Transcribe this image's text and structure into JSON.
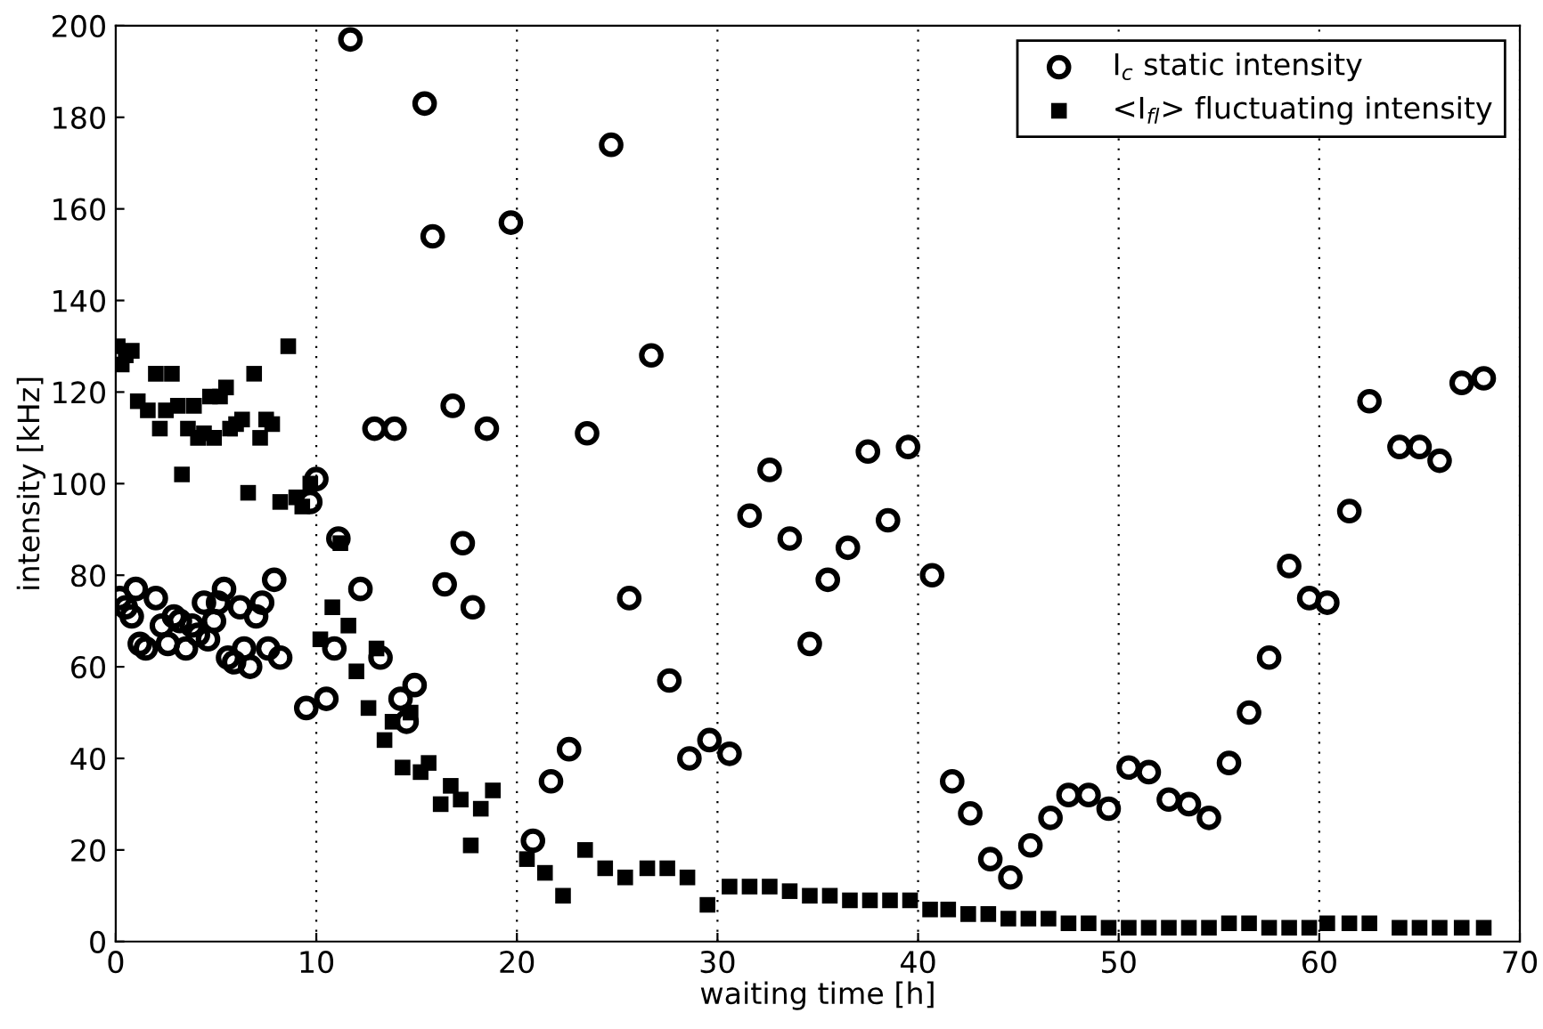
{
  "chart_data": {
    "type": "scatter",
    "xlabel": "waiting time [h]",
    "ylabel": "intensity [kHz]",
    "xlim": [
      0,
      70
    ],
    "ylim": [
      0,
      200
    ],
    "xticks": [
      0,
      10,
      20,
      30,
      40,
      50,
      60,
      70
    ],
    "yticks": [
      0,
      20,
      40,
      60,
      80,
      100,
      120,
      140,
      160,
      180,
      200
    ],
    "grid": "x",
    "legend": "top right",
    "series": [
      {
        "name": "I$_{c}$ static intensity",
        "color": "#000000",
        "marker": "circle",
        "x": [
          0.2,
          0.5,
          0.8,
          1.0,
          1.2,
          1.5,
          2.0,
          2.3,
          2.6,
          2.9,
          3.2,
          3.5,
          3.8,
          4.1,
          4.4,
          4.6,
          4.9,
          5.1,
          5.4,
          5.6,
          5.9,
          6.2,
          6.4,
          6.7,
          7.0,
          7.3,
          7.6,
          7.9,
          8.2,
          9.5,
          9.7,
          10.0,
          10.5,
          10.9,
          11.1,
          11.7,
          12.2,
          12.9,
          13.2,
          13.9,
          14.2,
          14.5,
          14.9,
          15.4,
          15.8,
          16.4,
          16.8,
          17.3,
          17.8,
          18.5,
          19.7,
          20.8,
          21.7,
          22.6,
          23.5,
          24.7,
          25.6,
          26.7,
          27.6,
          28.6,
          29.6,
          30.6,
          31.6,
          32.6,
          33.6,
          34.6,
          35.5,
          36.5,
          37.5,
          38.5,
          39.5,
          40.7,
          41.7,
          42.6,
          43.6,
          44.6,
          45.6,
          46.6,
          47.5,
          48.5,
          49.5,
          50.5,
          51.5,
          52.5,
          53.5,
          54.5,
          55.5,
          56.5,
          57.5,
          58.5,
          59.5,
          60.4,
          61.5,
          62.5,
          64.0,
          65.0,
          66.0,
          67.1,
          68.2
        ],
        "values": [
          75,
          73,
          71,
          77,
          65,
          64,
          75,
          69,
          65,
          71,
          70,
          64,
          69,
          67,
          74,
          66,
          70,
          74,
          77,
          62,
          61,
          73,
          64,
          60,
          71,
          74,
          64,
          79,
          62,
          51,
          96,
          101,
          53,
          64,
          88,
          197,
          77,
          112,
          62,
          112,
          53,
          48,
          56,
          183,
          154,
          78,
          117,
          87,
          73,
          112,
          157,
          22,
          35,
          42,
          111,
          174,
          75,
          128,
          57,
          40,
          44,
          41,
          93,
          103,
          88,
          65,
          79,
          86,
          107,
          92,
          108,
          80,
          35,
          28,
          18,
          14,
          21,
          27,
          32,
          32,
          29,
          38,
          37,
          31,
          30,
          27,
          39,
          50,
          62,
          82,
          75,
          74,
          94,
          118,
          108,
          108,
          105,
          122,
          123
        ]
      },
      {
        "name": "<I$_{fl}$> fluctuating intensity",
        "color": "#000000",
        "marker": "square",
        "x": [
          0.1,
          0.3,
          0.5,
          0.8,
          1.1,
          1.6,
          2.0,
          2.2,
          2.5,
          2.8,
          3.1,
          3.3,
          3.6,
          3.9,
          4.1,
          4.4,
          4.7,
          4.9,
          5.2,
          5.5,
          5.7,
          6.0,
          6.3,
          6.6,
          6.9,
          7.2,
          7.5,
          7.8,
          8.2,
          8.6,
          9.0,
          9.3,
          9.7,
          10.2,
          10.8,
          11.2,
          11.6,
          12.0,
          12.6,
          13.0,
          13.4,
          13.8,
          14.3,
          14.7,
          15.2,
          15.6,
          16.2,
          16.7,
          17.2,
          17.7,
          18.2,
          18.8,
          20.5,
          21.4,
          22.3,
          23.4,
          24.4,
          25.4,
          26.5,
          27.5,
          28.5,
          29.5,
          30.6,
          31.6,
          32.6,
          33.6,
          34.6,
          35.6,
          36.6,
          37.6,
          38.6,
          39.6,
          40.6,
          41.5,
          42.5,
          43.5,
          44.5,
          45.5,
          46.5,
          47.5,
          48.5,
          49.5,
          50.5,
          51.5,
          52.5,
          53.5,
          54.5,
          55.5,
          56.5,
          57.5,
          58.5,
          59.5,
          60.4,
          61.5,
          62.5,
          64.0,
          65.0,
          66.0,
          67.1,
          68.2
        ],
        "values": [
          130,
          126,
          128,
          129,
          118,
          116,
          124,
          112,
          116,
          124,
          117,
          102,
          112,
          117,
          110,
          111,
          119,
          110,
          119,
          121,
          112,
          113,
          114,
          98,
          124,
          110,
          114,
          113,
          96,
          130,
          97,
          95,
          100,
          66,
          73,
          87,
          69,
          59,
          51,
          64,
          44,
          48,
          38,
          50,
          37,
          39,
          30,
          34,
          31,
          21,
          29,
          33,
          18,
          15,
          10,
          20,
          16,
          14,
          16,
          16,
          14,
          8,
          12,
          12,
          12,
          11,
          10,
          10,
          9,
          9,
          9,
          9,
          7,
          7,
          6,
          6,
          5,
          5,
          5,
          4,
          4,
          3,
          3,
          3,
          3,
          3,
          3,
          4,
          4,
          3,
          3,
          3,
          4,
          4,
          4,
          3,
          3,
          3,
          3,
          3
        ]
      }
    ]
  }
}
